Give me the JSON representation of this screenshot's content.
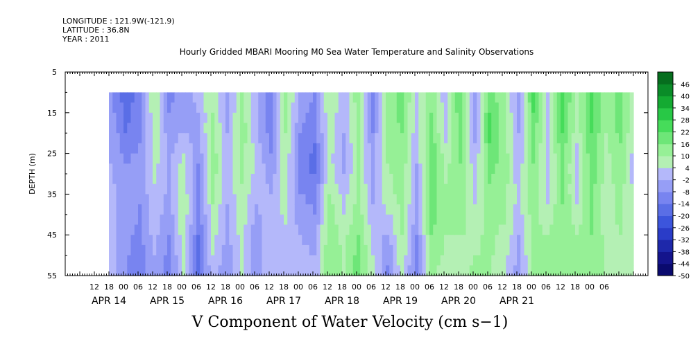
{
  "header": {
    "longitude": "LONGITUDE : 121.9W(-121.9)",
    "latitude": "LATITUDE : 36.8N",
    "year": "YEAR : 2011",
    "title": "Hourly Gridded MBARI Mooring M0 Sea Water Temperature and Salinity Observations"
  },
  "chart_data": {
    "type": "heatmap",
    "title": "Hourly Gridded MBARI Mooring M0 Sea Water Temperature and Salinity Observations",
    "variable_label": "V Component of Water Velocity (cm s−1)",
    "ylabel": "DEPTH (m)",
    "xlabel": "",
    "y_range": [
      5,
      55
    ],
    "y_inverted": true,
    "y_ticks": [
      5,
      15,
      25,
      35,
      45,
      55
    ],
    "x_range_hours": [
      0,
      216
    ],
    "x_hour_ticks": [
      "12",
      "18",
      "00",
      "06",
      "12",
      "18",
      "00",
      "06",
      "12",
      "18",
      "00",
      "06",
      "12",
      "18",
      "00",
      "06",
      "12",
      "18",
      "00",
      "06",
      "12",
      "18",
      "00",
      "06",
      "12",
      "18",
      "00",
      "06",
      "12",
      "18",
      "00",
      "06",
      "12",
      "18",
      "00",
      "06"
    ],
    "x_day_labels": [
      "APR 14",
      "APR 15",
      "APR 16",
      "APR 17",
      "APR 18",
      "APR 19",
      "APR 20",
      "APR 21"
    ],
    "data_extent": {
      "time_start": "APR 14 18:00",
      "depth_top": 10,
      "depth_bottom": 55
    },
    "colorbar": {
      "levels": [
        46,
        40,
        34,
        28,
        22,
        16,
        10,
        4,
        -2,
        -8,
        -14,
        -20,
        -26,
        -32,
        -38,
        -44,
        -50
      ],
      "range": [
        -50,
        52
      ],
      "colors_low_to_high": [
        "#0a0a6e",
        "#14148c",
        "#1e28aa",
        "#2a3cc8",
        "#3c55dc",
        "#5a6ee6",
        "#7884f0",
        "#969ef6",
        "#b4b8fa",
        "#b4f0b4",
        "#96f096",
        "#6ee678",
        "#46dc5a",
        "#28c846",
        "#14aa32",
        "#0a8c28",
        "#066e1e"
      ]
    },
    "columns": [
      {
        "hour": 0,
        "v": [
          -12,
          -10,
          -8,
          -6,
          -5,
          -4
        ]
      },
      {
        "hour": 6,
        "v": [
          -25,
          -20,
          -14,
          -10,
          -12,
          -14
        ]
      },
      {
        "hour": 12,
        "v": [
          -18,
          -15,
          -12,
          -14,
          -16,
          -18
        ]
      },
      {
        "hour": 18,
        "v": [
          4,
          2,
          0,
          -4,
          -6,
          -10
        ]
      },
      {
        "hour": 24,
        "v": [
          -16,
          -12,
          -8,
          -10,
          -14,
          -18
        ]
      },
      {
        "hour": 30,
        "v": [
          -10,
          -8,
          0,
          4,
          2,
          -2
        ]
      },
      {
        "hour": 36,
        "v": [
          -6,
          -10,
          -14,
          -18,
          -20,
          -22
        ]
      },
      {
        "hour": 42,
        "v": [
          2,
          6,
          8,
          4,
          0,
          -6
        ]
      },
      {
        "hour": 48,
        "v": [
          -12,
          -8,
          -6,
          -8,
          -10,
          -12
        ]
      },
      {
        "hour": 54,
        "v": [
          4,
          8,
          6,
          2,
          0,
          -2
        ]
      },
      {
        "hour": 60,
        "v": [
          -8,
          -6,
          -4,
          -8,
          -12,
          -14
        ]
      },
      {
        "hour": 66,
        "v": [
          -20,
          -18,
          -12,
          -6,
          -4,
          -2
        ]
      },
      {
        "hour": 72,
        "v": [
          6,
          4,
          2,
          0,
          -4,
          -8
        ]
      },
      {
        "hour": 78,
        "v": [
          -8,
          -14,
          -18,
          -12,
          -8,
          -4
        ]
      },
      {
        "hour": 84,
        "v": [
          -14,
          -18,
          -22,
          -16,
          -10,
          -6
        ]
      },
      {
        "hour": 90,
        "v": [
          4,
          2,
          0,
          6,
          8,
          10
        ]
      },
      {
        "hour": 96,
        "v": [
          -6,
          -8,
          -10,
          -4,
          2,
          4
        ]
      },
      {
        "hour": 102,
        "v": [
          8,
          6,
          4,
          6,
          10,
          14
        ]
      },
      {
        "hour": 108,
        "v": [
          -18,
          -14,
          -10,
          -8,
          -4,
          0
        ]
      },
      {
        "hour": 114,
        "v": [
          6,
          8,
          4,
          0,
          -10,
          -16
        ]
      },
      {
        "hour": 120,
        "v": [
          14,
          10,
          8,
          6,
          4,
          2
        ]
      },
      {
        "hour": 126,
        "v": [
          -4,
          -6,
          -8,
          -10,
          -14,
          -20
        ]
      },
      {
        "hour": 132,
        "v": [
          8,
          12,
          16,
          14,
          10,
          6
        ]
      },
      {
        "hour": 138,
        "v": [
          -6,
          -4,
          2,
          6,
          4,
          0
        ]
      },
      {
        "hour": 144,
        "v": [
          16,
          14,
          10,
          8,
          4,
          0
        ]
      },
      {
        "hour": 150,
        "v": [
          -8,
          -10,
          -6,
          -2,
          2,
          6
        ]
      },
      {
        "hour": 156,
        "v": [
          14,
          18,
          12,
          8,
          6,
          4
        ]
      },
      {
        "hour": 162,
        "v": [
          4,
          6,
          8,
          6,
          2,
          -2
        ]
      },
      {
        "hour": 168,
        "v": [
          -10,
          -8,
          -6,
          -4,
          -8,
          -12
        ]
      },
      {
        "hour": 174,
        "v": [
          18,
          14,
          10,
          8,
          6,
          4
        ]
      },
      {
        "hour": 180,
        "v": [
          -2,
          -4,
          -6,
          -2,
          4,
          8
        ]
      },
      {
        "hour": 186,
        "v": [
          20,
          16,
          12,
          10,
          8,
          6
        ]
      },
      {
        "hour": 192,
        "v": [
          2,
          0,
          -4,
          -2,
          4,
          10
        ]
      },
      {
        "hour": 198,
        "v": [
          18,
          16,
          14,
          12,
          10,
          8
        ]
      },
      {
        "hour": 204,
        "v": [
          6,
          4,
          2,
          0,
          2,
          4
        ]
      },
      {
        "hour": 210,
        "v": [
          14,
          12,
          8,
          6,
          4,
          2
        ]
      },
      {
        "hour": 216,
        "v": [
          -2,
          -4,
          -6,
          -4,
          -2,
          0
        ]
      }
    ]
  }
}
